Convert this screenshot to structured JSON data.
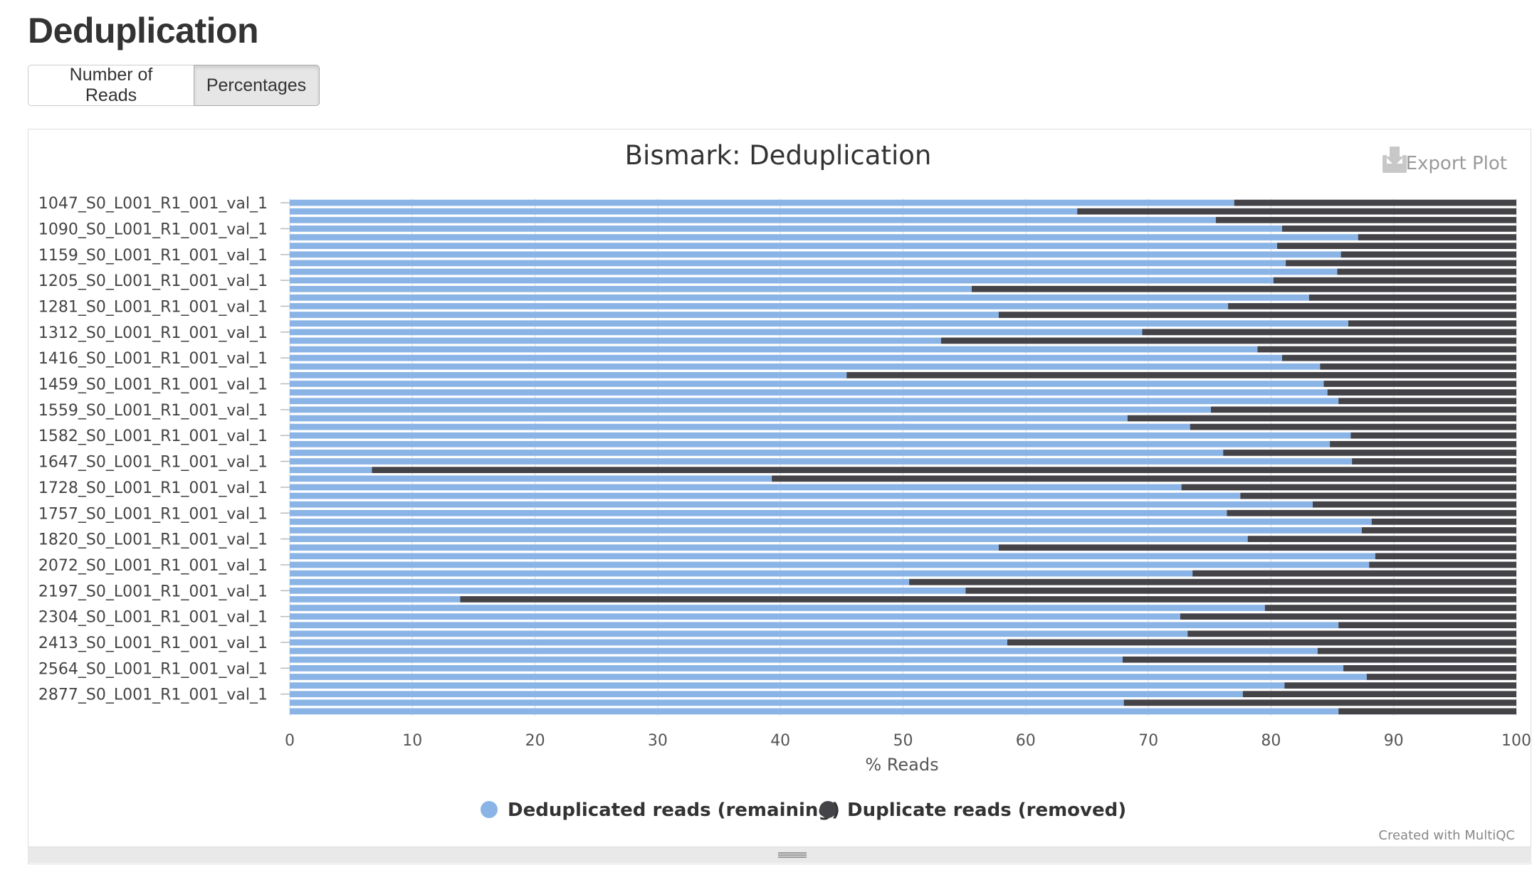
{
  "page": {
    "section_title": "Deduplication",
    "buttons": {
      "reads_label": "Number of Reads",
      "percent_label": "Percentages"
    },
    "export_label": "Export Plot",
    "credit": "Created with MultiQC"
  },
  "colors": {
    "remaining": "#8ab4e6",
    "removed": "#434348"
  },
  "chart_data": {
    "type": "bar",
    "orientation": "horizontal",
    "stacked": true,
    "title": "Bismark: Deduplication",
    "xlabel": "% Reads",
    "ylabel": "",
    "xlim": [
      0,
      100
    ],
    "xticks": [
      0,
      10,
      20,
      30,
      40,
      50,
      60,
      70,
      80,
      90,
      100
    ],
    "grid": true,
    "legend_position": "bottom-center",
    "tick_labels": [
      "1047_S0_L001_R1_001_val_1",
      "1090_S0_L001_R1_001_val_1",
      "1159_S0_L001_R1_001_val_1",
      "1205_S0_L001_R1_001_val_1",
      "1281_S0_L001_R1_001_val_1",
      "1312_S0_L001_R1_001_val_1",
      "1416_S0_L001_R1_001_val_1",
      "1459_S0_L001_R1_001_val_1",
      "1559_S0_L001_R1_001_val_1",
      "1582_S0_L001_R1_001_val_1",
      "1647_S0_L001_R1_001_val_1",
      "1728_S0_L001_R1_001_val_1",
      "1757_S0_L001_R1_001_val_1",
      "1820_S0_L001_R1_001_val_1",
      "2072_S0_L001_R1_001_val_1",
      "2197_S0_L001_R1_001_val_1",
      "2304_S0_L001_R1_001_val_1",
      "2413_S0_L001_R1_001_val_1",
      "2564_S0_L001_R1_001_val_1",
      "2877_S0_L001_R1_001_val_1"
    ],
    "tick_every": 3,
    "series": [
      {
        "name": "Deduplicated reads (remaining)",
        "values": [
          77.0,
          64.2,
          75.5,
          80.9,
          87.1,
          80.5,
          85.7,
          81.2,
          85.4,
          80.2,
          55.6,
          83.1,
          76.5,
          57.8,
          86.3,
          69.5,
          53.1,
          78.9,
          80.9,
          84.0,
          45.4,
          84.3,
          84.6,
          85.5,
          75.1,
          68.3,
          73.4,
          86.5,
          84.8,
          76.1,
          86.6,
          6.7,
          39.3,
          72.7,
          77.5,
          83.4,
          76.4,
          88.2,
          87.4,
          78.1,
          57.8,
          88.5,
          88.0,
          73.6,
          50.5,
          55.1,
          13.9,
          79.5,
          72.6,
          85.5,
          73.2,
          58.5,
          83.8,
          67.9,
          85.9,
          87.8,
          81.1,
          77.7,
          68.0,
          85.5
        ]
      },
      {
        "name": "Duplicate reads (removed)",
        "values": [
          23.0,
          35.8,
          24.5,
          19.1,
          12.9,
          19.5,
          14.3,
          18.8,
          14.6,
          19.8,
          44.4,
          16.9,
          23.5,
          42.2,
          13.7,
          30.5,
          46.9,
          21.1,
          19.1,
          16.0,
          54.6,
          15.7,
          15.4,
          14.5,
          24.9,
          31.7,
          26.6,
          13.5,
          15.2,
          23.9,
          13.4,
          93.3,
          60.7,
          27.3,
          22.5,
          16.6,
          23.6,
          11.8,
          12.6,
          21.9,
          42.2,
          11.5,
          12.0,
          26.4,
          49.5,
          44.9,
          86.1,
          20.5,
          27.4,
          14.5,
          26.8,
          41.5,
          16.2,
          32.1,
          14.1,
          12.2,
          18.9,
          22.3,
          32.0,
          14.5
        ]
      }
    ]
  }
}
